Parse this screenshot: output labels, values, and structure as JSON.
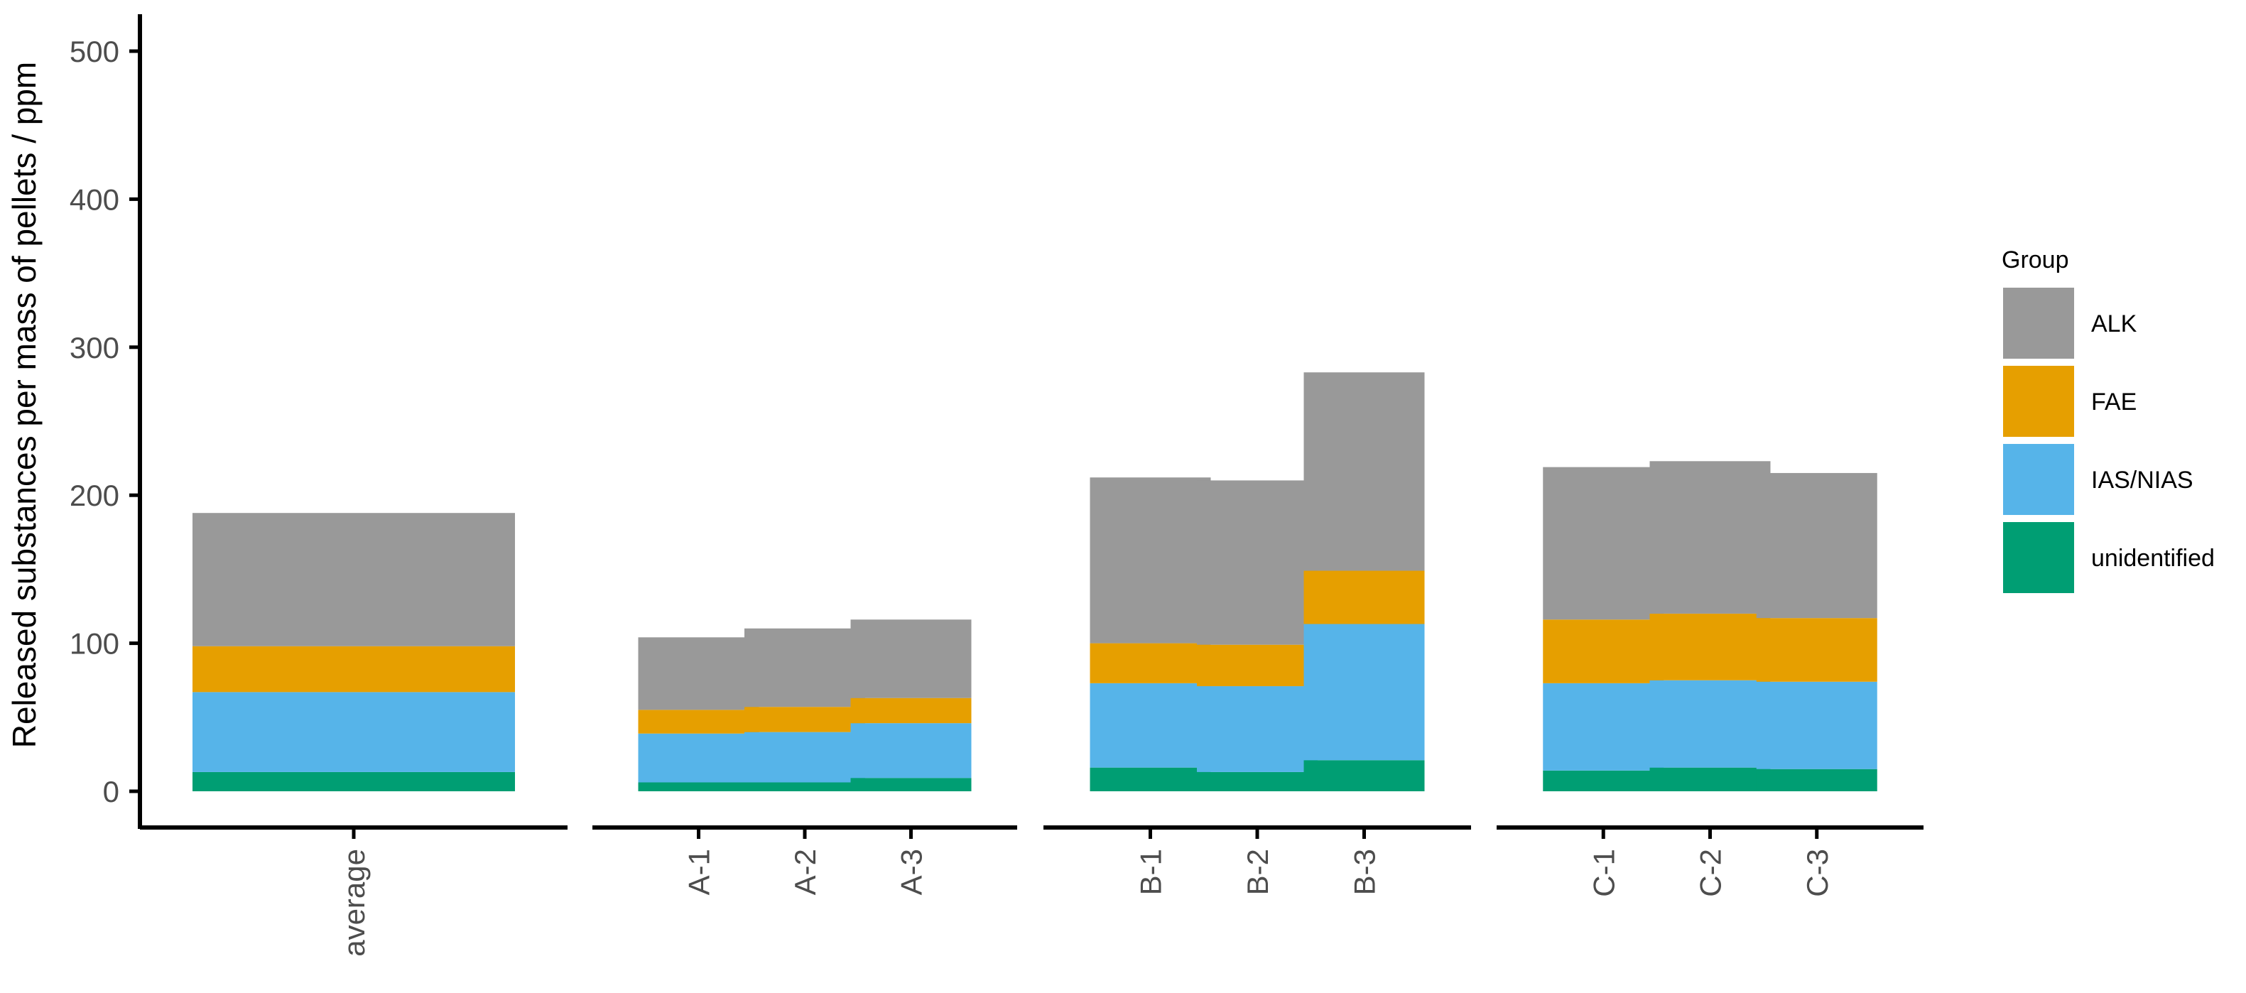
{
  "chart_data": {
    "type": "bar",
    "stacked": true,
    "title": "",
    "xlabel": "",
    "ylabel": "Released substances per mass of pellets / ppm",
    "ylim": [
      0,
      525
    ],
    "y_ticks": [
      0,
      100,
      200,
      300,
      400,
      500
    ],
    "grid": false,
    "facets": [
      {
        "categories": [
          "average"
        ]
      },
      {
        "categories": [
          "A-1",
          "A-2",
          "A-3"
        ]
      },
      {
        "categories": [
          "B-1",
          "B-2",
          "B-3"
        ]
      },
      {
        "categories": [
          "C-1",
          "C-2",
          "C-3"
        ]
      }
    ],
    "categories": [
      "average",
      "A-1",
      "A-2",
      "A-3",
      "B-1",
      "B-2",
      "B-3",
      "C-1",
      "C-2",
      "C-3"
    ],
    "series": [
      {
        "name": "unidentified",
        "color": "#009E73",
        "values": [
          13,
          6,
          6,
          9,
          16,
          13,
          21,
          14,
          16,
          15
        ]
      },
      {
        "name": "IAS/NIAS",
        "color": "#56B4E9",
        "values": [
          54,
          33,
          34,
          37,
          57,
          58,
          92,
          59,
          59,
          59
        ]
      },
      {
        "name": "FAE",
        "color": "#E69F00",
        "values": [
          31,
          16,
          17,
          17,
          27,
          28,
          36,
          43,
          45,
          43
        ]
      },
      {
        "name": "ALK",
        "color": "#999999",
        "values": [
          90,
          49,
          53,
          53,
          112,
          111,
          134,
          103,
          103,
          98
        ]
      }
    ],
    "legend": {
      "title": "Group",
      "position": "right",
      "order": [
        "ALK",
        "FAE",
        "IAS/NIAS",
        "unidentified"
      ]
    }
  }
}
